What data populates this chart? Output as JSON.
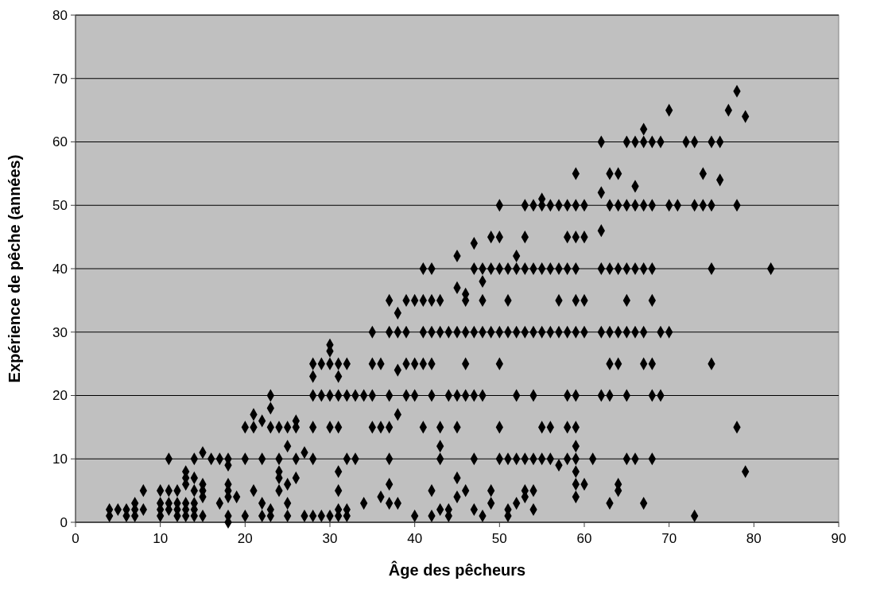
{
  "chart_data": {
    "type": "scatter",
    "xlabel": "Âge des pêcheurs",
    "ylabel": "Expérience de pêche (années)",
    "xlim": [
      0,
      90
    ],
    "xticks": [
      0,
      10,
      20,
      30,
      40,
      50,
      60,
      70,
      80,
      90
    ],
    "ylim": [
      0,
      80
    ],
    "yticks": [
      0,
      10,
      20,
      30,
      40,
      50,
      60,
      70,
      80
    ],
    "grid": "y",
    "marker": "diamond",
    "series": [
      {
        "color": "#000000",
        "x": [
          4,
          4,
          5,
          6,
          6,
          7,
          7,
          7,
          8,
          8,
          10,
          10,
          10,
          10,
          11,
          11,
          11,
          11,
          12,
          12,
          12,
          12,
          13,
          13,
          13,
          13,
          13,
          13,
          14,
          14,
          14,
          14,
          14,
          14,
          15,
          15,
          15,
          15,
          15,
          16,
          17,
          17,
          18,
          18,
          18,
          18,
          18,
          18,
          18,
          19,
          20,
          20,
          20,
          21,
          21,
          21,
          22,
          22,
          22,
          22,
          23,
          23,
          23,
          23,
          23,
          24,
          24,
          24,
          24,
          24,
          25,
          25,
          25,
          25,
          25,
          26,
          26,
          26,
          26,
          27,
          27,
          28,
          28,
          28,
          28,
          28,
          28,
          29,
          29,
          29,
          30,
          30,
          30,
          30,
          30,
          30,
          31,
          31,
          31,
          31,
          31,
          31,
          31,
          31,
          32,
          32,
          32,
          32,
          32,
          33,
          33,
          34,
          34,
          35,
          35,
          35,
          35,
          36,
          36,
          36,
          37,
          37,
          37,
          37,
          37,
          37,
          37,
          38,
          38,
          38,
          38,
          38,
          39,
          39,
          39,
          39,
          40,
          40,
          40,
          40,
          41,
          41,
          41,
          41,
          41,
          42,
          42,
          42,
          42,
          42,
          42,
          42,
          43,
          43,
          43,
          43,
          43,
          43,
          44,
          44,
          44,
          44,
          45,
          45,
          45,
          45,
          45,
          45,
          45,
          46,
          46,
          46,
          46,
          46,
          46,
          47,
          47,
          47,
          47,
          47,
          47,
          48,
          48,
          48,
          48,
          48,
          48,
          49,
          49,
          49,
          49,
          49,
          50,
          50,
          50,
          50,
          50,
          50,
          50,
          51,
          51,
          51,
          51,
          51,
          51,
          52,
          52,
          52,
          52,
          52,
          52,
          53,
          53,
          53,
          53,
          53,
          53,
          53,
          54,
          54,
          54,
          54,
          54,
          54,
          54,
          55,
          55,
          55,
          55,
          55,
          55,
          56,
          56,
          56,
          56,
          56,
          57,
          57,
          57,
          57,
          57,
          58,
          58,
          58,
          58,
          58,
          58,
          58,
          59,
          59,
          59,
          59,
          59,
          59,
          59,
          59,
          59,
          59,
          59,
          59,
          59,
          60,
          60,
          60,
          60,
          60,
          61,
          62,
          62,
          62,
          62,
          62,
          62,
          63,
          63,
          63,
          63,
          63,
          63,
          63,
          64,
          64,
          64,
          64,
          64,
          64,
          64,
          65,
          65,
          65,
          65,
          65,
          65,
          65,
          66,
          66,
          66,
          66,
          66,
          66,
          67,
          67,
          67,
          67,
          67,
          67,
          67,
          68,
          68,
          68,
          68,
          68,
          68,
          68,
          69,
          69,
          69,
          70,
          70,
          70,
          71,
          72,
          73,
          73,
          73,
          74,
          74,
          75,
          75,
          75,
          75,
          76,
          76,
          77,
          78,
          78,
          78,
          79,
          79,
          82
        ],
        "values": [
          2,
          1,
          2,
          2,
          1,
          3,
          2,
          1,
          5,
          2,
          5,
          3,
          2,
          1,
          10,
          5,
          3,
          2,
          5,
          3,
          2,
          1,
          8,
          7,
          6,
          3,
          2,
          1,
          10,
          7,
          5,
          3,
          2,
          1,
          11,
          6,
          5,
          4,
          1,
          10,
          10,
          3,
          10,
          9,
          6,
          5,
          4,
          1,
          0,
          4,
          15,
          10,
          1,
          17,
          15,
          5,
          16,
          10,
          3,
          1,
          20,
          18,
          15,
          2,
          1,
          15,
          10,
          8,
          7,
          5,
          15,
          12,
          6,
          3,
          1,
          16,
          15,
          10,
          7,
          11,
          1,
          25,
          23,
          20,
          15,
          10,
          1,
          25,
          20,
          1,
          28,
          27,
          25,
          20,
          15,
          1,
          25,
          23,
          20,
          15,
          8,
          5,
          2,
          1,
          25,
          20,
          10,
          2,
          1,
          20,
          10,
          20,
          3,
          30,
          25,
          20,
          15,
          25,
          15,
          4,
          35,
          30,
          20,
          15,
          10,
          6,
          3,
          33,
          30,
          24,
          17,
          3,
          35,
          30,
          25,
          20,
          35,
          25,
          20,
          1,
          40,
          35,
          30,
          25,
          15,
          40,
          35,
          30,
          25,
          20,
          5,
          1,
          35,
          30,
          15,
          12,
          10,
          2,
          30,
          20,
          2,
          1,
          42,
          37,
          30,
          20,
          15,
          7,
          4,
          36,
          35,
          30,
          25,
          20,
          5,
          44,
          40,
          30,
          20,
          10,
          2,
          40,
          38,
          35,
          30,
          20,
          1,
          45,
          40,
          30,
          5,
          3,
          50,
          45,
          40,
          30,
          25,
          15,
          10,
          40,
          35,
          30,
          10,
          2,
          1,
          42,
          40,
          30,
          20,
          10,
          3,
          50,
          45,
          40,
          30,
          10,
          5,
          4,
          50,
          40,
          30,
          20,
          10,
          5,
          2,
          51,
          50,
          40,
          30,
          15,
          10,
          50,
          40,
          30,
          15,
          10,
          50,
          40,
          35,
          30,
          9,
          50,
          45,
          40,
          30,
          20,
          15,
          10,
          55,
          50,
          45,
          40,
          35,
          30,
          20,
          15,
          12,
          10,
          8,
          6,
          4,
          50,
          45,
          35,
          30,
          6,
          10,
          60,
          52,
          46,
          40,
          30,
          20,
          55,
          50,
          40,
          30,
          25,
          20,
          3,
          55,
          50,
          40,
          30,
          25,
          6,
          5,
          60,
          50,
          40,
          35,
          30,
          20,
          10,
          60,
          53,
          50,
          40,
          30,
          10,
          62,
          60,
          50,
          40,
          30,
          25,
          3,
          60,
          50,
          40,
          35,
          25,
          20,
          10,
          60,
          30,
          20,
          65,
          50,
          30,
          50,
          60,
          60,
          50,
          1,
          55,
          50,
          60,
          50,
          40,
          25,
          60,
          54,
          65,
          68,
          50,
          15,
          64,
          8,
          40
        ]
      }
    ]
  }
}
